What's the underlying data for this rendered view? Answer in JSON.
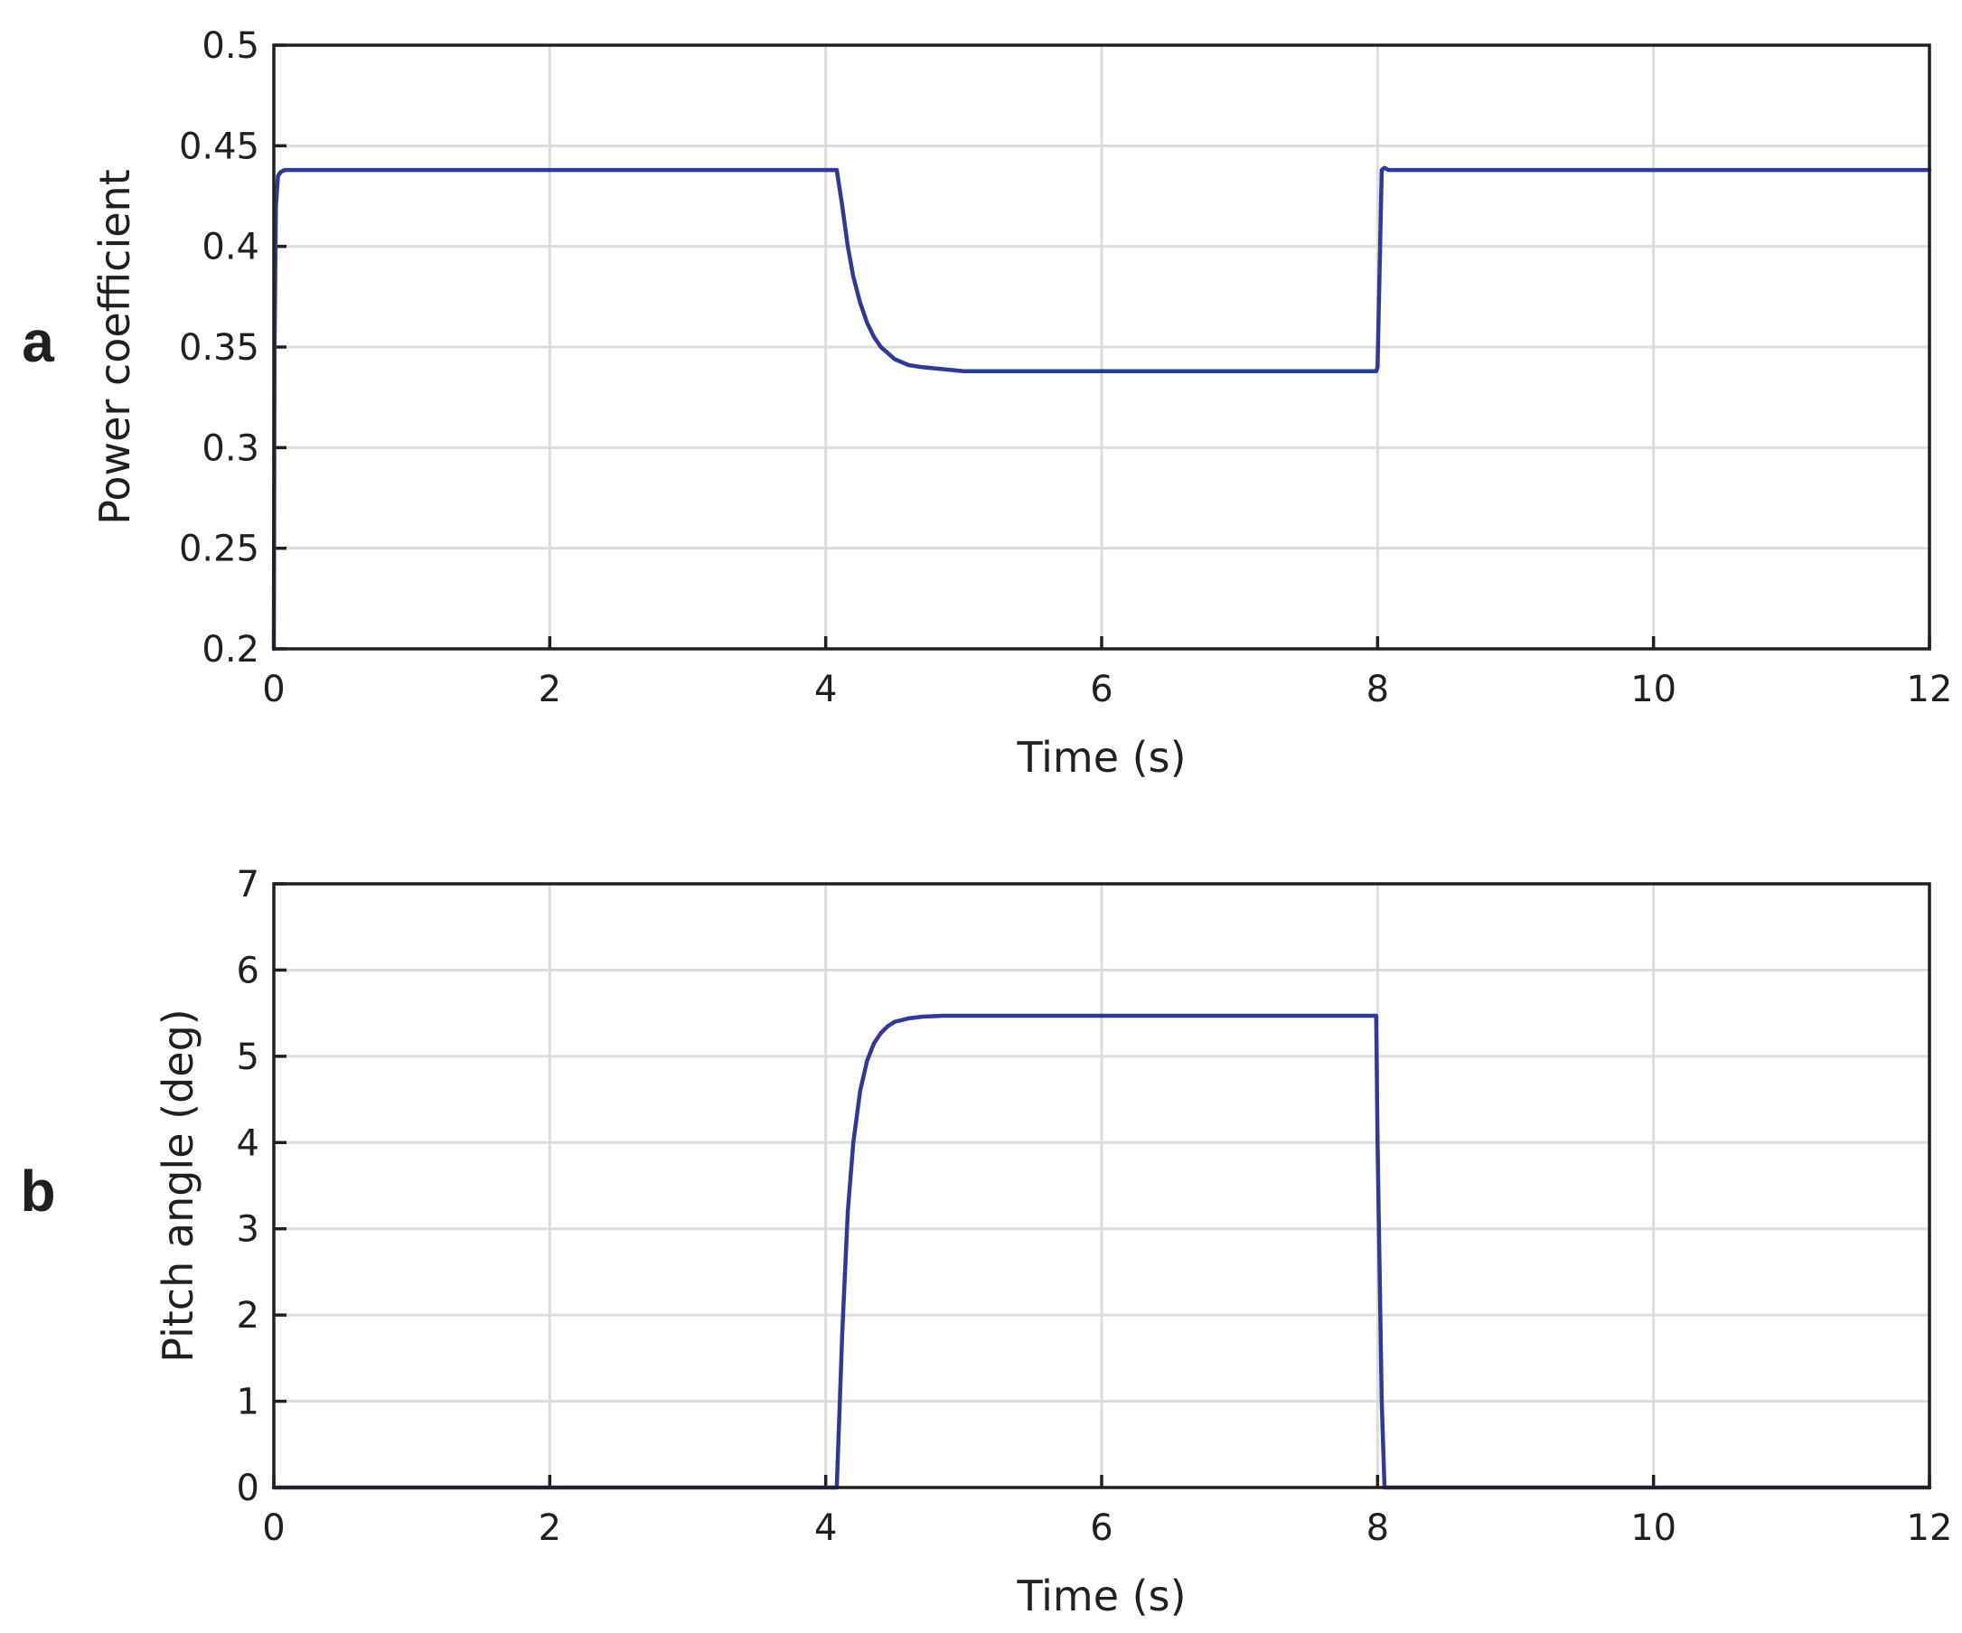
{
  "panel_labels": [
    "a",
    "b"
  ],
  "colors": {
    "series": "#2e3a95",
    "grid": "#dcdcdc",
    "axis": "#231f20"
  },
  "chart_data": [
    {
      "type": "line",
      "panel": "a",
      "title": "",
      "xlabel": "Time (s)",
      "ylabel": "Power coefficient",
      "xlim": [
        0,
        12
      ],
      "ylim": [
        0.2,
        0.5
      ],
      "xticks": [
        0,
        2,
        4,
        6,
        8,
        10,
        12
      ],
      "xtick_labels": [
        "0",
        "2",
        "4",
        "6",
        "8",
        "10",
        "12"
      ],
      "yticks": [
        0.2,
        0.25,
        0.3,
        0.35,
        0.4,
        0.45,
        0.5
      ],
      "ytick_labels": [
        "0.2",
        "0.25",
        "0.3",
        "0.35",
        "0.4",
        "0.45",
        "0.5"
      ],
      "grid": true,
      "series": [
        {
          "name": "",
          "color": "#2e3a95",
          "x": [
            0,
            0.005,
            0.015,
            0.03,
            0.05,
            0.08,
            0.12,
            0.2,
            1,
            2,
            3,
            4,
            4.08,
            4.12,
            4.16,
            4.2,
            4.25,
            4.3,
            4.35,
            4.4,
            4.5,
            4.6,
            4.7,
            4.85,
            5,
            6,
            7,
            7.99,
            8.0,
            8.03,
            8.05,
            8.08,
            9,
            10,
            11,
            12
          ],
          "y": [
            0.2,
            0.35,
            0.42,
            0.435,
            0.437,
            0.438,
            0.438,
            0.438,
            0.438,
            0.438,
            0.438,
            0.438,
            0.438,
            0.42,
            0.4,
            0.385,
            0.372,
            0.362,
            0.355,
            0.35,
            0.344,
            0.341,
            0.34,
            0.339,
            0.338,
            0.338,
            0.338,
            0.338,
            0.34,
            0.438,
            0.439,
            0.438,
            0.438,
            0.438,
            0.438,
            0.438
          ]
        }
      ]
    },
    {
      "type": "line",
      "panel": "b",
      "title": "",
      "xlabel": "Time (s)",
      "ylabel": "Pitch angle (deg)",
      "xlim": [
        0,
        12
      ],
      "ylim": [
        0,
        7
      ],
      "xticks": [
        0,
        2,
        4,
        6,
        8,
        10,
        12
      ],
      "xtick_labels": [
        "0",
        "2",
        "4",
        "6",
        "8",
        "10",
        "12"
      ],
      "yticks": [
        0,
        1,
        2,
        3,
        4,
        5,
        6,
        7
      ],
      "ytick_labels": [
        "0",
        "1",
        "2",
        "3",
        "4",
        "5",
        "6",
        "7"
      ],
      "grid": true,
      "series": [
        {
          "name": "",
          "color": "#2e3a95",
          "x": [
            0,
            1,
            2,
            3,
            4,
            4.08,
            4.12,
            4.16,
            4.2,
            4.25,
            4.3,
            4.35,
            4.4,
            4.45,
            4.5,
            4.6,
            4.7,
            4.85,
            5,
            6,
            7,
            7.99,
            8.0,
            8.03,
            8.05,
            8.1,
            9,
            10,
            11,
            12
          ],
          "y": [
            0,
            0,
            0,
            0,
            0,
            0,
            1.8,
            3.2,
            4.0,
            4.6,
            4.95,
            5.15,
            5.27,
            5.35,
            5.4,
            5.44,
            5.46,
            5.47,
            5.47,
            5.47,
            5.47,
            5.47,
            4.0,
            1.0,
            0,
            0,
            0,
            0,
            0,
            0
          ]
        }
      ]
    }
  ]
}
